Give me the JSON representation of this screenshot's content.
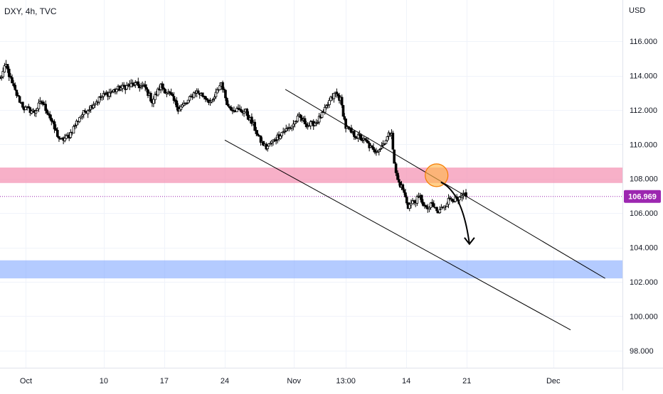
{
  "header": {
    "symbol_info": "DXY, 4h, TVC",
    "currency": "USD"
  },
  "colors": {
    "candle": "#000000",
    "resistance_zone": "#f48fb1",
    "support_zone": "#82a8ff",
    "current_price_line": "#9c27b0",
    "price_tag_bg": "#9c27b0",
    "annotation_circle": "#ffb74d",
    "channel_line": "#000000"
  },
  "chart_data": {
    "type": "candlestick",
    "title": "",
    "symbol": "DXY",
    "timeframe": "4h",
    "source": "TVC",
    "y_axis": {
      "label": "USD",
      "ticks": [
        116,
        114,
        112,
        110,
        108,
        106,
        104,
        102,
        100,
        98
      ],
      "tick_labels": [
        "116.000",
        "114.000",
        "112.000",
        "110.000",
        "108.000",
        "106.000",
        "104.000",
        "102.000",
        "100.000",
        "98.000"
      ],
      "range": [
        97.0,
        118.4
      ],
      "grid": true
    },
    "x_axis": {
      "tick_labels": [
        "Oct",
        "10",
        "17",
        "24",
        "Nov",
        "13:00",
        "14",
        "21",
        "Dec"
      ],
      "tick_positions_days": [
        0,
        9,
        16,
        23,
        31,
        37,
        44,
        51,
        61
      ],
      "range_days": [
        -3,
        69
      ],
      "grid": true
    },
    "current_price": 106.969,
    "current_price_label": "106.969",
    "zones": [
      {
        "name": "resistance",
        "from": 107.75,
        "to": 108.65
      },
      {
        "name": "support",
        "from": 102.2,
        "to": 103.25
      }
    ],
    "channel_lines": [
      {
        "name": "upper",
        "from": {
          "day": 30,
          "price": 113.2
        },
        "to": {
          "day": 67,
          "price": 102.2
        }
      },
      {
        "name": "lower",
        "from": {
          "day": 23,
          "price": 110.25
        },
        "to": {
          "day": 63,
          "price": 99.2
        }
      }
    ],
    "annotations": {
      "circle": {
        "day": 47.5,
        "price": 108.2
      },
      "arrow": {
        "from": {
          "day": 48.0,
          "price": 107.8
        },
        "via": {
          "day": 50.5,
          "price": 107.2
        },
        "to": {
          "day": 51.3,
          "price": 104.2
        }
      }
    },
    "key_points": [
      {
        "day": -3.0,
        "price": 113.8
      },
      {
        "day": -2.3,
        "price": 114.6
      },
      {
        "day": -1.6,
        "price": 113.5
      },
      {
        "day": -0.9,
        "price": 112.7
      },
      {
        "day": -0.2,
        "price": 112.1
      },
      {
        "day": 1.0,
        "price": 111.9
      },
      {
        "day": 1.8,
        "price": 112.5
      },
      {
        "day": 2.6,
        "price": 111.8
      },
      {
        "day": 3.3,
        "price": 110.9
      },
      {
        "day": 4.0,
        "price": 110.2
      },
      {
        "day": 5.0,
        "price": 110.5
      },
      {
        "day": 6.2,
        "price": 111.6
      },
      {
        "day": 7.5,
        "price": 112.2
      },
      {
        "day": 8.8,
        "price": 112.8
      },
      {
        "day": 10.5,
        "price": 113.2
      },
      {
        "day": 12.5,
        "price": 113.5
      },
      {
        "day": 13.8,
        "price": 113.3
      },
      {
        "day": 14.6,
        "price": 112.5
      },
      {
        "day": 15.6,
        "price": 113.4
      },
      {
        "day": 16.8,
        "price": 112.8
      },
      {
        "day": 17.6,
        "price": 112.1
      },
      {
        "day": 18.6,
        "price": 112.4
      },
      {
        "day": 19.6,
        "price": 113.1
      },
      {
        "day": 20.6,
        "price": 112.8
      },
      {
        "day": 21.5,
        "price": 112.4
      },
      {
        "day": 22.6,
        "price": 113.6
      },
      {
        "day": 23.4,
        "price": 112.2
      },
      {
        "day": 24.4,
        "price": 112.0
      },
      {
        "day": 25.4,
        "price": 111.9
      },
      {
        "day": 26.3,
        "price": 111.1
      },
      {
        "day": 27.0,
        "price": 110.3
      },
      {
        "day": 27.8,
        "price": 109.8
      },
      {
        "day": 28.6,
        "price": 110.2
      },
      {
        "day": 29.6,
        "price": 110.7
      },
      {
        "day": 30.6,
        "price": 111.0
      },
      {
        "day": 31.6,
        "price": 111.6
      },
      {
        "day": 32.6,
        "price": 111.1
      },
      {
        "day": 33.6,
        "price": 111.3
      },
      {
        "day": 34.4,
        "price": 111.8
      },
      {
        "day": 35.1,
        "price": 112.5
      },
      {
        "day": 35.8,
        "price": 113.0
      },
      {
        "day": 36.4,
        "price": 112.6
      },
      {
        "day": 37.0,
        "price": 111.0
      },
      {
        "day": 37.8,
        "price": 110.6
      },
      {
        "day": 38.6,
        "price": 110.4
      },
      {
        "day": 39.4,
        "price": 110.1
      },
      {
        "day": 40.2,
        "price": 109.6
      },
      {
        "day": 41.0,
        "price": 109.8
      },
      {
        "day": 41.8,
        "price": 110.4
      },
      {
        "day": 42.3,
        "price": 110.8
      },
      {
        "day": 42.6,
        "price": 108.8
      },
      {
        "day": 43.0,
        "price": 107.9
      },
      {
        "day": 43.6,
        "price": 107.4
      },
      {
        "day": 44.2,
        "price": 106.4
      },
      {
        "day": 44.9,
        "price": 106.7
      },
      {
        "day": 45.6,
        "price": 106.9
      },
      {
        "day": 46.3,
        "price": 106.2
      },
      {
        "day": 47.0,
        "price": 106.5
      },
      {
        "day": 47.7,
        "price": 106.0
      },
      {
        "day": 48.4,
        "price": 106.5
      },
      {
        "day": 49.2,
        "price": 106.9
      },
      {
        "day": 50.0,
        "price": 106.7
      },
      {
        "day": 50.6,
        "price": 107.0
      },
      {
        "day": 50.9,
        "price": 106.969
      }
    ]
  }
}
